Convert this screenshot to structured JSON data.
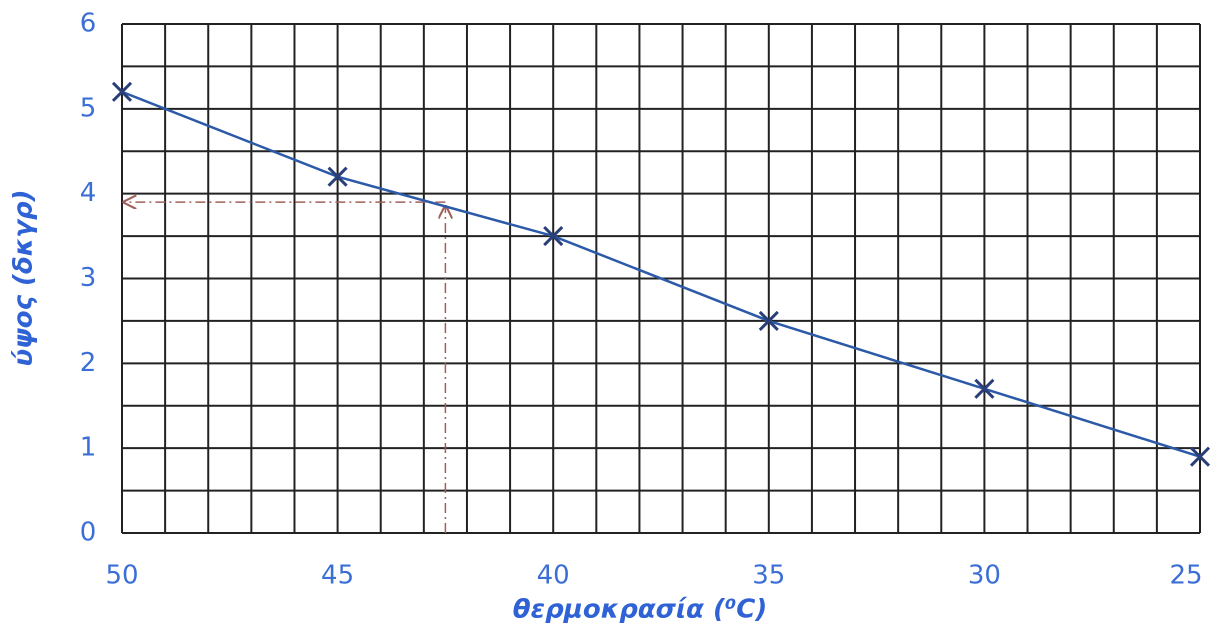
{
  "chart_data": {
    "type": "line",
    "x_label": "θερμοκρασία (⁰C)",
    "y_label": "ύψος (δκγρ)",
    "x": [
      50,
      45,
      40,
      35,
      30,
      25
    ],
    "values": [
      5.2,
      4.2,
      3.5,
      2.5,
      1.7,
      0.9
    ],
    "color": "#2c5aa8",
    "xlim": [
      50,
      25
    ],
    "ylim": [
      0,
      6
    ],
    "xticks": [
      50,
      45,
      40,
      35,
      30,
      25
    ],
    "yticks": [
      0,
      1,
      2,
      3,
      4,
      5,
      6
    ],
    "x_grid": [
      50,
      49,
      48,
      47,
      46,
      45,
      44,
      43,
      42,
      41,
      40,
      39,
      38,
      37,
      36,
      35,
      34,
      33,
      32,
      31,
      30,
      29,
      28,
      27,
      26,
      25
    ],
    "y_grid": [
      0,
      0.5,
      1,
      1.5,
      2,
      2.5,
      3,
      3.5,
      4,
      4.5,
      5,
      5.5,
      6
    ],
    "reading": {
      "x": 42.5,
      "y": 3.9,
      "color": "#a0605a"
    }
  }
}
